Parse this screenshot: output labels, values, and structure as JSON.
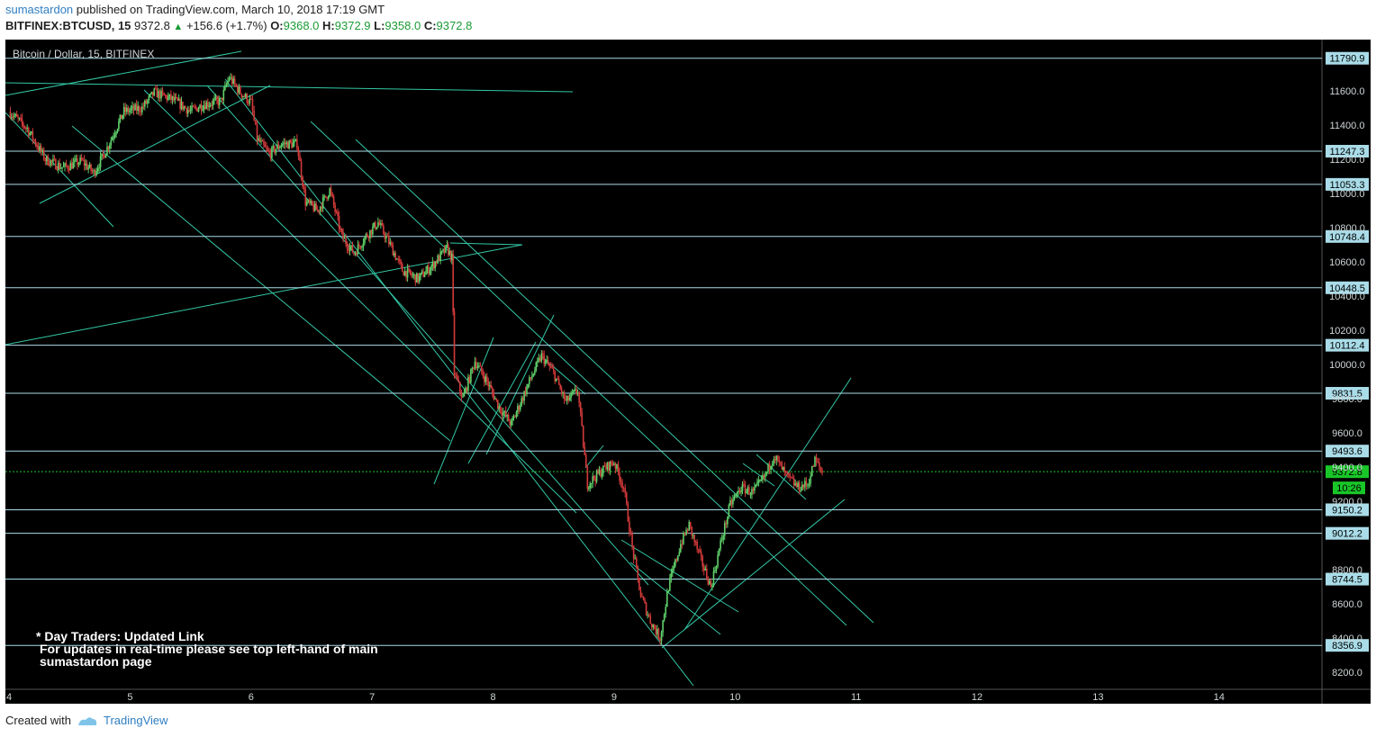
{
  "header": {
    "author": "sumastardon",
    "published_text": "published on TradingView.com, March 10, 2018 17:19 GMT",
    "symbol": "BITFINEX:BTCUSD, 15",
    "last": "9372.8",
    "change": "+156.6 (+1.7%)",
    "o_label": "O:",
    "o": "9368.0",
    "h_label": "H:",
    "h": "9372.9",
    "l_label": "L:",
    "l": "9358.0",
    "c_label": "C:",
    "c": "9372.8"
  },
  "chart_data": {
    "type": "candlestick",
    "title": "Bitcoin / Dollar, 15, BITFINEX",
    "x_ticks": [
      "4",
      "5",
      "6",
      "7",
      "8",
      "9",
      "10",
      "11",
      "12",
      "13",
      "14"
    ],
    "y_ticks": [
      "11600.0",
      "11400.0",
      "11200.0",
      "11000.0",
      "10800.0",
      "10600.0",
      "10400.0",
      "10200.0",
      "10000.0",
      "9800.0",
      "9600.0",
      "9400.0",
      "9200.0",
      "8800.0",
      "8600.0",
      "8400.0",
      "8200.0"
    ],
    "ylim": [
      8100,
      11900
    ],
    "xlim": [
      3.97,
      14.85
    ],
    "horizontal_levels": [
      11790.9,
      11247.3,
      11053.3,
      10748.4,
      10448.5,
      10112.4,
      9831.5,
      9493.6,
      9150.2,
      9012.2,
      8744.5,
      8356.9
    ],
    "current_price": 9372.8,
    "countdown": "10:26",
    "price_path": [
      [
        4.0,
        11480
      ],
      [
        4.15,
        11380
      ],
      [
        4.3,
        11200
      ],
      [
        4.45,
        11150
      ],
      [
        4.6,
        11190
      ],
      [
        4.7,
        11120
      ],
      [
        4.8,
        11250
      ],
      [
        4.95,
        11480
      ],
      [
        5.1,
        11500
      ],
      [
        5.2,
        11590
      ],
      [
        5.35,
        11550
      ],
      [
        5.5,
        11480
      ],
      [
        5.6,
        11520
      ],
      [
        5.75,
        11540
      ],
      [
        5.82,
        11680
      ],
      [
        5.9,
        11600
      ],
      [
        6.0,
        11530
      ],
      [
        6.05,
        11320
      ],
      [
        6.15,
        11230
      ],
      [
        6.25,
        11290
      ],
      [
        6.38,
        11290
      ],
      [
        6.45,
        10950
      ],
      [
        6.55,
        10900
      ],
      [
        6.65,
        11020
      ],
      [
        6.75,
        10750
      ],
      [
        6.85,
        10650
      ],
      [
        6.95,
        10750
      ],
      [
        7.05,
        10830
      ],
      [
        7.15,
        10700
      ],
      [
        7.25,
        10550
      ],
      [
        7.38,
        10500
      ],
      [
        7.5,
        10580
      ],
      [
        7.62,
        10680
      ],
      [
        7.66,
        10620
      ],
      [
        7.68,
        9950
      ],
      [
        7.75,
        9800
      ],
      [
        7.85,
        10020
      ],
      [
        7.95,
        9900
      ],
      [
        8.05,
        9750
      ],
      [
        8.15,
        9650
      ],
      [
        8.3,
        9900
      ],
      [
        8.4,
        10050
      ],
      [
        8.5,
        9950
      ],
      [
        8.6,
        9780
      ],
      [
        8.7,
        9850
      ],
      [
        8.78,
        9300
      ],
      [
        8.9,
        9380
      ],
      [
        9.0,
        9430
      ],
      [
        9.08,
        9280
      ],
      [
        9.15,
        8930
      ],
      [
        9.22,
        8650
      ],
      [
        9.3,
        8500
      ],
      [
        9.38,
        8400
      ],
      [
        9.45,
        8700
      ],
      [
        9.55,
        8950
      ],
      [
        9.62,
        9060
      ],
      [
        9.72,
        8850
      ],
      [
        9.8,
        8700
      ],
      [
        9.88,
        8950
      ],
      [
        9.96,
        9180
      ],
      [
        10.05,
        9280
      ],
      [
        10.15,
        9250
      ],
      [
        10.25,
        9350
      ],
      [
        10.32,
        9470
      ],
      [
        10.42,
        9350
      ],
      [
        10.52,
        9280
      ],
      [
        10.6,
        9300
      ],
      [
        10.66,
        9440
      ],
      [
        10.72,
        9370
      ]
    ],
    "annotation": [
      "* Day Traders: Updated Link",
      "For updates in real-time please see top left-hand of main",
      "sumastardon page"
    ],
    "colors": {
      "background": "#000000",
      "trendline": "#33c8a6",
      "level": "#a9dce8",
      "up": "#5fd06a",
      "down": "#d23a3a",
      "current": "#19c628"
    }
  },
  "footer": {
    "created_with": "Created with",
    "brand": "TradingView"
  }
}
